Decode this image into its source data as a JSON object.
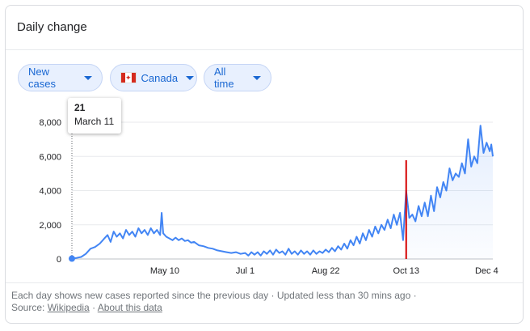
{
  "card": {
    "title": "Daily change"
  },
  "filters": {
    "metric": "New cases",
    "region": "Canada",
    "period": "All time"
  },
  "tooltip": {
    "value": "21",
    "date": "March 11"
  },
  "footer": {
    "line1": "Each day shows new cases reported since the previous day · Updated less than 30 mins ago ·",
    "source_label": "Source:",
    "source_link": "Wikipedia",
    "separator": "·",
    "about_link": "About this data"
  },
  "colors": {
    "line": "#4285f4",
    "marker": "#d50000",
    "chip_bg": "#e8f0fe",
    "chip_text": "#1967d2"
  },
  "chart_data": {
    "type": "area",
    "ylim": [
      0,
      8000
    ],
    "yticks": [
      "0",
      "2,000",
      "4,000",
      "6,000",
      "8,000"
    ],
    "ytick_values": [
      0,
      2000,
      4000,
      6000,
      8000
    ],
    "xticks": [
      {
        "label": "May 10",
        "date": "2020-05-10"
      },
      {
        "label": "Jul 1",
        "date": "2020-07-01"
      },
      {
        "label": "Aug 22",
        "date": "2020-08-22"
      },
      {
        "label": "Oct 13",
        "date": "2020-10-13"
      },
      {
        "label": "Dec 4",
        "date": "2020-12-04"
      }
    ],
    "x_range": [
      "2020-03-11",
      "2020-12-08"
    ],
    "highlight": {
      "date": "2020-03-11",
      "value": 21
    },
    "marker_date": "2020-10-13",
    "points": [
      [
        "2020-03-11",
        21
      ],
      [
        "2020-03-14",
        60
      ],
      [
        "2020-03-17",
        120
      ],
      [
        "2020-03-20",
        300
      ],
      [
        "2020-03-23",
        600
      ],
      [
        "2020-03-26",
        700
      ],
      [
        "2020-03-29",
        900
      ],
      [
        "2020-04-01",
        1200
      ],
      [
        "2020-04-03",
        1400
      ],
      [
        "2020-04-05",
        1000
      ],
      [
        "2020-04-07",
        1600
      ],
      [
        "2020-04-09",
        1300
      ],
      [
        "2020-04-11",
        1500
      ],
      [
        "2020-04-13",
        1200
      ],
      [
        "2020-04-15",
        1700
      ],
      [
        "2020-04-17",
        1400
      ],
      [
        "2020-04-19",
        1600
      ],
      [
        "2020-04-21",
        1300
      ],
      [
        "2020-04-23",
        1800
      ],
      [
        "2020-04-25",
        1500
      ],
      [
        "2020-04-27",
        1700
      ],
      [
        "2020-04-29",
        1400
      ],
      [
        "2020-05-01",
        1800
      ],
      [
        "2020-05-03",
        1500
      ],
      [
        "2020-05-05",
        1700
      ],
      [
        "2020-05-07",
        1400
      ],
      [
        "2020-05-08",
        2700
      ],
      [
        "2020-05-09",
        1500
      ],
      [
        "2020-05-11",
        1300
      ],
      [
        "2020-05-13",
        1200
      ],
      [
        "2020-05-15",
        1100
      ],
      [
        "2020-05-17",
        1250
      ],
      [
        "2020-05-19",
        1100
      ],
      [
        "2020-05-21",
        1200
      ],
      [
        "2020-05-23",
        1050
      ],
      [
        "2020-05-25",
        1100
      ],
      [
        "2020-05-27",
        950
      ],
      [
        "2020-05-29",
        1000
      ],
      [
        "2020-06-01",
        800
      ],
      [
        "2020-06-04",
        750
      ],
      [
        "2020-06-07",
        650
      ],
      [
        "2020-06-10",
        600
      ],
      [
        "2020-06-13",
        500
      ],
      [
        "2020-06-16",
        450
      ],
      [
        "2020-06-19",
        400
      ],
      [
        "2020-06-22",
        350
      ],
      [
        "2020-06-25",
        400
      ],
      [
        "2020-06-28",
        300
      ],
      [
        "2020-07-01",
        350
      ],
      [
        "2020-07-03",
        200
      ],
      [
        "2020-07-05",
        400
      ],
      [
        "2020-07-07",
        250
      ],
      [
        "2020-07-09",
        400
      ],
      [
        "2020-07-11",
        200
      ],
      [
        "2020-07-13",
        450
      ],
      [
        "2020-07-15",
        300
      ],
      [
        "2020-07-17",
        500
      ],
      [
        "2020-07-19",
        250
      ],
      [
        "2020-07-21",
        550
      ],
      [
        "2020-07-23",
        350
      ],
      [
        "2020-07-25",
        450
      ],
      [
        "2020-07-27",
        250
      ],
      [
        "2020-07-29",
        600
      ],
      [
        "2020-07-31",
        300
      ],
      [
        "2020-08-02",
        450
      ],
      [
        "2020-08-04",
        250
      ],
      [
        "2020-08-06",
        500
      ],
      [
        "2020-08-08",
        300
      ],
      [
        "2020-08-10",
        450
      ],
      [
        "2020-08-12",
        250
      ],
      [
        "2020-08-14",
        500
      ],
      [
        "2020-08-16",
        300
      ],
      [
        "2020-08-18",
        450
      ],
      [
        "2020-08-20",
        350
      ],
      [
        "2020-08-22",
        550
      ],
      [
        "2020-08-24",
        400
      ],
      [
        "2020-08-26",
        650
      ],
      [
        "2020-08-28",
        450
      ],
      [
        "2020-08-30",
        750
      ],
      [
        "2020-09-01",
        550
      ],
      [
        "2020-09-03",
        900
      ],
      [
        "2020-09-05",
        600
      ],
      [
        "2020-09-07",
        1100
      ],
      [
        "2020-09-09",
        800
      ],
      [
        "2020-09-11",
        1300
      ],
      [
        "2020-09-13",
        900
      ],
      [
        "2020-09-15",
        1500
      ],
      [
        "2020-09-17",
        1100
      ],
      [
        "2020-09-19",
        1700
      ],
      [
        "2020-09-21",
        1300
      ],
      [
        "2020-09-23",
        1900
      ],
      [
        "2020-09-25",
        1500
      ],
      [
        "2020-09-27",
        2000
      ],
      [
        "2020-09-29",
        1700
      ],
      [
        "2020-10-01",
        2300
      ],
      [
        "2020-10-03",
        1800
      ],
      [
        "2020-10-05",
        2600
      ],
      [
        "2020-10-07",
        2000
      ],
      [
        "2020-10-09",
        2700
      ],
      [
        "2020-10-11",
        1100
      ],
      [
        "2020-10-13",
        4000
      ],
      [
        "2020-10-15",
        2400
      ],
      [
        "2020-10-17",
        2600
      ],
      [
        "2020-10-19",
        2200
      ],
      [
        "2020-10-21",
        3100
      ],
      [
        "2020-10-23",
        2500
      ],
      [
        "2020-10-25",
        3300
      ],
      [
        "2020-10-27",
        2500
      ],
      [
        "2020-10-29",
        3700
      ],
      [
        "2020-10-31",
        2800
      ],
      [
        "2020-11-02",
        4200
      ],
      [
        "2020-11-04",
        3600
      ],
      [
        "2020-11-06",
        4500
      ],
      [
        "2020-11-08",
        4000
      ],
      [
        "2020-11-10",
        5300
      ],
      [
        "2020-11-12",
        4600
      ],
      [
        "2020-11-14",
        5000
      ],
      [
        "2020-11-16",
        4800
      ],
      [
        "2020-11-18",
        5600
      ],
      [
        "2020-11-20",
        5000
      ],
      [
        "2020-11-22",
        7000
      ],
      [
        "2020-11-24",
        5400
      ],
      [
        "2020-11-26",
        6000
      ],
      [
        "2020-11-28",
        5600
      ],
      [
        "2020-11-30",
        7800
      ],
      [
        "2020-12-02",
        6200
      ],
      [
        "2020-12-04",
        6800
      ],
      [
        "2020-12-06",
        6300
      ],
      [
        "2020-12-07",
        6700
      ],
      [
        "2020-12-08",
        6000
      ]
    ]
  }
}
